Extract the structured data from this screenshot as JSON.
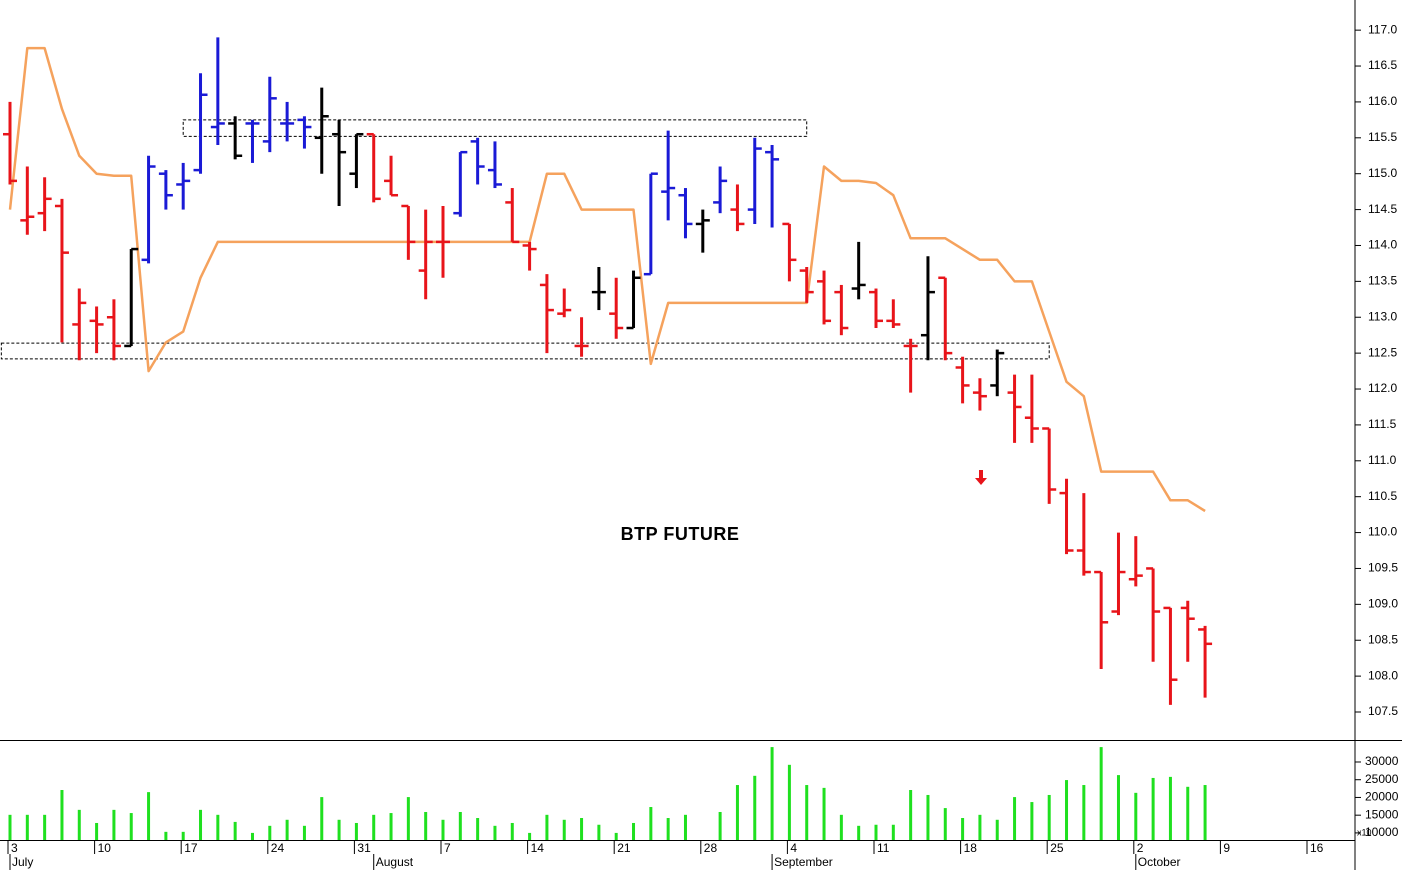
{
  "chart_data": {
    "type": "ohlc",
    "annotation": "BTP FUTURE",
    "categories": [
      "3",
      null,
      null,
      null,
      null,
      "10",
      null,
      null,
      null,
      null,
      "17",
      null,
      null,
      null,
      null,
      "24",
      null,
      null,
      null,
      null,
      "31",
      null,
      null,
      null,
      null,
      "7",
      null,
      null,
      null,
      null,
      "14",
      null,
      null,
      null,
      null,
      "21",
      null,
      null,
      null,
      null,
      "28",
      null,
      null,
      null,
      null,
      "4",
      null,
      null,
      null,
      null,
      "11",
      null,
      null,
      null,
      null,
      "18",
      null,
      null,
      null,
      null,
      "25",
      null,
      null,
      null,
      null,
      "2",
      null,
      null,
      null,
      null,
      "9",
      null,
      null,
      null,
      null,
      "16"
    ],
    "months": [
      "July",
      null,
      null,
      null,
      null,
      null,
      null,
      null,
      null,
      null,
      null,
      null,
      null,
      null,
      null,
      null,
      null,
      null,
      null,
      null,
      null,
      "August",
      null,
      null,
      null,
      null,
      null,
      null,
      null,
      null,
      null,
      null,
      null,
      null,
      null,
      null,
      null,
      null,
      null,
      null,
      null,
      null,
      null,
      null,
      "September",
      null,
      null,
      null,
      null,
      null,
      null,
      null,
      null,
      null,
      null,
      null,
      null,
      null,
      null,
      null,
      null,
      null,
      null,
      null,
      null,
      "October",
      null,
      null,
      null,
      null,
      null,
      null,
      null,
      null,
      null,
      null
    ],
    "high": [
      116.0,
      115.1,
      114.95,
      114.65,
      113.4,
      113.15,
      113.25,
      113.95,
      115.25,
      115.05,
      115.15,
      116.4,
      116.9,
      115.8,
      115.75,
      116.35,
      116.0,
      115.8,
      116.2,
      115.75,
      115.55,
      115.55,
      115.25,
      114.55,
      114.5,
      114.55,
      115.3,
      115.5,
      115.45,
      114.8,
      114.05,
      113.6,
      113.4,
      113.0,
      113.7,
      113.55,
      113.65,
      115.0,
      115.6,
      114.8,
      114.5,
      115.1,
      114.85,
      115.5,
      115.4,
      114.3,
      113.7,
      113.65,
      113.45,
      114.05,
      113.4,
      113.25,
      112.7,
      113.85,
      113.55,
      112.45,
      112.15,
      112.55,
      112.2,
      112.2,
      111.45,
      110.75,
      110.55,
      109.45,
      110.0,
      109.95,
      109.5,
      108.95,
      109.05,
      108.7,
      null,
      null,
      null,
      null,
      null,
      null
    ],
    "low": [
      114.85,
      114.15,
      114.2,
      112.65,
      112.4,
      112.5,
      112.4,
      112.6,
      113.75,
      114.5,
      114.5,
      115.0,
      115.4,
      115.2,
      115.15,
      115.3,
      115.45,
      115.35,
      115.0,
      114.55,
      114.8,
      114.6,
      114.7,
      113.8,
      113.25,
      113.55,
      114.4,
      114.85,
      114.8,
      114.05,
      113.65,
      112.5,
      113.0,
      112.45,
      113.1,
      112.7,
      112.85,
      113.6,
      114.35,
      114.1,
      113.9,
      114.45,
      114.2,
      114.3,
      114.25,
      113.5,
      113.2,
      112.9,
      112.75,
      113.25,
      112.85,
      112.85,
      111.95,
      112.4,
      112.4,
      111.8,
      111.7,
      111.9,
      111.25,
      111.25,
      110.4,
      109.7,
      109.4,
      108.1,
      108.85,
      109.25,
      108.2,
      107.6,
      108.2,
      107.7,
      null,
      null,
      null,
      null,
      null,
      null
    ],
    "open": [
      115.55,
      114.35,
      114.45,
      114.55,
      112.9,
      112.95,
      113.0,
      112.6,
      113.8,
      115.0,
      114.85,
      115.05,
      115.65,
      115.7,
      115.7,
      115.45,
      115.7,
      115.75,
      115.5,
      115.55,
      115.0,
      115.55,
      114.9,
      114.55,
      113.65,
      114.05,
      114.45,
      115.45,
      115.05,
      114.6,
      114.0,
      113.45,
      113.05,
      112.6,
      113.35,
      113.05,
      112.85,
      113.6,
      114.75,
      114.7,
      114.3,
      114.6,
      114.5,
      114.5,
      115.3,
      114.3,
      113.65,
      113.5,
      113.35,
      113.4,
      113.35,
      112.95,
      112.6,
      112.75,
      113.55,
      112.3,
      111.95,
      112.05,
      111.95,
      111.6,
      111.45,
      110.55,
      109.75,
      109.45,
      108.9,
      109.35,
      109.5,
      108.95,
      108.95,
      108.65,
      null,
      null,
      null,
      null,
      null,
      null
    ],
    "close": [
      114.9,
      114.4,
      114.65,
      113.9,
      113.2,
      112.9,
      112.6,
      113.95,
      115.1,
      114.7,
      114.9,
      116.1,
      115.7,
      115.25,
      115.7,
      116.05,
      115.7,
      115.65,
      115.8,
      115.3,
      115.55,
      114.65,
      114.7,
      114.05,
      114.05,
      114.05,
      115.3,
      115.1,
      114.85,
      114.05,
      113.95,
      113.1,
      113.1,
      112.6,
      113.35,
      112.85,
      113.55,
      115.0,
      114.8,
      114.3,
      114.35,
      114.9,
      114.3,
      115.35,
      115.2,
      113.8,
      113.35,
      112.95,
      112.85,
      113.45,
      112.95,
      112.9,
      112.6,
      113.35,
      112.5,
      112.05,
      111.9,
      112.5,
      111.75,
      111.45,
      110.6,
      109.75,
      109.45,
      108.75,
      109.45,
      109.4,
      108.9,
      107.95,
      108.8,
      108.45,
      null,
      null,
      null,
      null,
      null,
      null
    ],
    "bar_colors": [
      "#e8141a",
      "#e8141a",
      "#e8141a",
      "#e8141a",
      "#e8141a",
      "#e8141a",
      "#e8141a",
      "#000000",
      "#1a1ad6",
      "#1a1ad6",
      "#1a1ad6",
      "#1a1ad6",
      "#1a1ad6",
      "#000000",
      "#1a1ad6",
      "#1a1ad6",
      "#1a1ad6",
      "#1a1ad6",
      "#000000",
      "#000000",
      "#000000",
      "#e8141a",
      "#e8141a",
      "#e8141a",
      "#e8141a",
      "#e8141a",
      "#1a1ad6",
      "#1a1ad6",
      "#1a1ad6",
      "#e8141a",
      "#e8141a",
      "#e8141a",
      "#e8141a",
      "#e8141a",
      "#000000",
      "#e8141a",
      "#000000",
      "#1a1ad6",
      "#1a1ad6",
      "#1a1ad6",
      "#000000",
      "#1a1ad6",
      "#e8141a",
      "#1a1ad6",
      "#1a1ad6",
      "#e8141a",
      "#e8141a",
      "#e8141a",
      "#e8141a",
      "#000000",
      "#e8141a",
      "#e8141a",
      "#e8141a",
      "#000000",
      "#e8141a",
      "#e8141a",
      "#e8141a",
      "#000000",
      "#e8141a",
      "#e8141a",
      "#e8141a",
      "#e8141a",
      "#e8141a",
      "#e8141a",
      "#e8141a",
      "#e8141a",
      "#e8141a",
      "#e8141a",
      "#e8141a",
      "#e8141a",
      null,
      null,
      null,
      null,
      null,
      null
    ],
    "line": {
      "color": "#f5a25d",
      "values": [
        114.5,
        116.75,
        116.75,
        115.9,
        115.25,
        115.0,
        114.97,
        114.97,
        112.25,
        112.65,
        112.8,
        113.55,
        114.05,
        114.05,
        114.05,
        114.05,
        114.05,
        114.05,
        114.05,
        114.05,
        114.05,
        114.05,
        114.05,
        114.05,
        114.05,
        114.05,
        114.05,
        114.05,
        114.05,
        114.05,
        114.05,
        115.0,
        115.0,
        114.5,
        114.5,
        114.5,
        114.5,
        112.35,
        113.2,
        113.2,
        113.2,
        113.2,
        113.2,
        113.2,
        113.2,
        113.2,
        113.2,
        115.1,
        114.9,
        114.9,
        114.87,
        114.7,
        114.1,
        114.1,
        114.1,
        113.95,
        113.8,
        113.8,
        113.5,
        113.5,
        112.8,
        112.1,
        111.9,
        110.85,
        110.85,
        110.85,
        110.85,
        110.45,
        110.45,
        110.3,
        null,
        null,
        null,
        null,
        null,
        null
      ]
    },
    "zones": [
      {
        "from": 10,
        "to": 46,
        "low": 115.52,
        "high": 115.75
      },
      {
        "from": 0,
        "to": 60,
        "low": 112.42,
        "high": 112.64
      }
    ],
    "ylim": [
      107.11,
      117.42
    ],
    "yticks": [
      107.5,
      {
        "value": 108.0,
        "label": "108.0"
      },
      108.5,
      {
        "value": 109.0,
        "label": "109.0"
      },
      109.5,
      {
        "value": 110.0,
        "label": "110.0"
      },
      110.5,
      {
        "value": 111.0,
        "label": "111.0"
      },
      111.5,
      {
        "value": 112.0,
        "label": "112.0"
      },
      112.5,
      {
        "value": 113.0,
        "label": "113.0"
      },
      113.5,
      {
        "value": 114.0,
        "label": "114.0"
      },
      114.5,
      {
        "value": 115.0,
        "label": "115.0"
      },
      115.5,
      {
        "value": 116.0,
        "label": "116.0"
      },
      116.5,
      {
        "value": 117.0,
        "label": "117.0"
      }
    ],
    "volume": {
      "color": "#1fe01f",
      "unit_label": "x10",
      "values": [
        15100,
        15100,
        15100,
        22100,
        16500,
        12800,
        16500,
        15600,
        21500,
        10300,
        10300,
        16500,
        15100,
        13100,
        10000,
        12000,
        13700,
        12000,
        20100,
        13700,
        12800,
        15100,
        15600,
        20100,
        15900,
        13700,
        15900,
        14200,
        12000,
        12800,
        10000,
        15100,
        13700,
        14200,
        12300,
        10000,
        12800,
        17300,
        14200,
        15100,
        null,
        15900,
        23500,
        26100,
        34200,
        29200,
        23500,
        22700,
        15100,
        12000,
        12300,
        12300,
        22100,
        20700,
        17000,
        14200,
        15100,
        13700,
        20100,
        18700,
        20700,
        24900,
        23500,
        34200,
        26300,
        21300,
        25500,
        25800,
        23000,
        23500,
        null,
        null,
        null,
        null,
        null,
        null
      ],
      "ylim": [
        8000,
        36200
      ],
      "yticks": [
        10000,
        15000,
        20000,
        25000,
        30000
      ]
    }
  }
}
